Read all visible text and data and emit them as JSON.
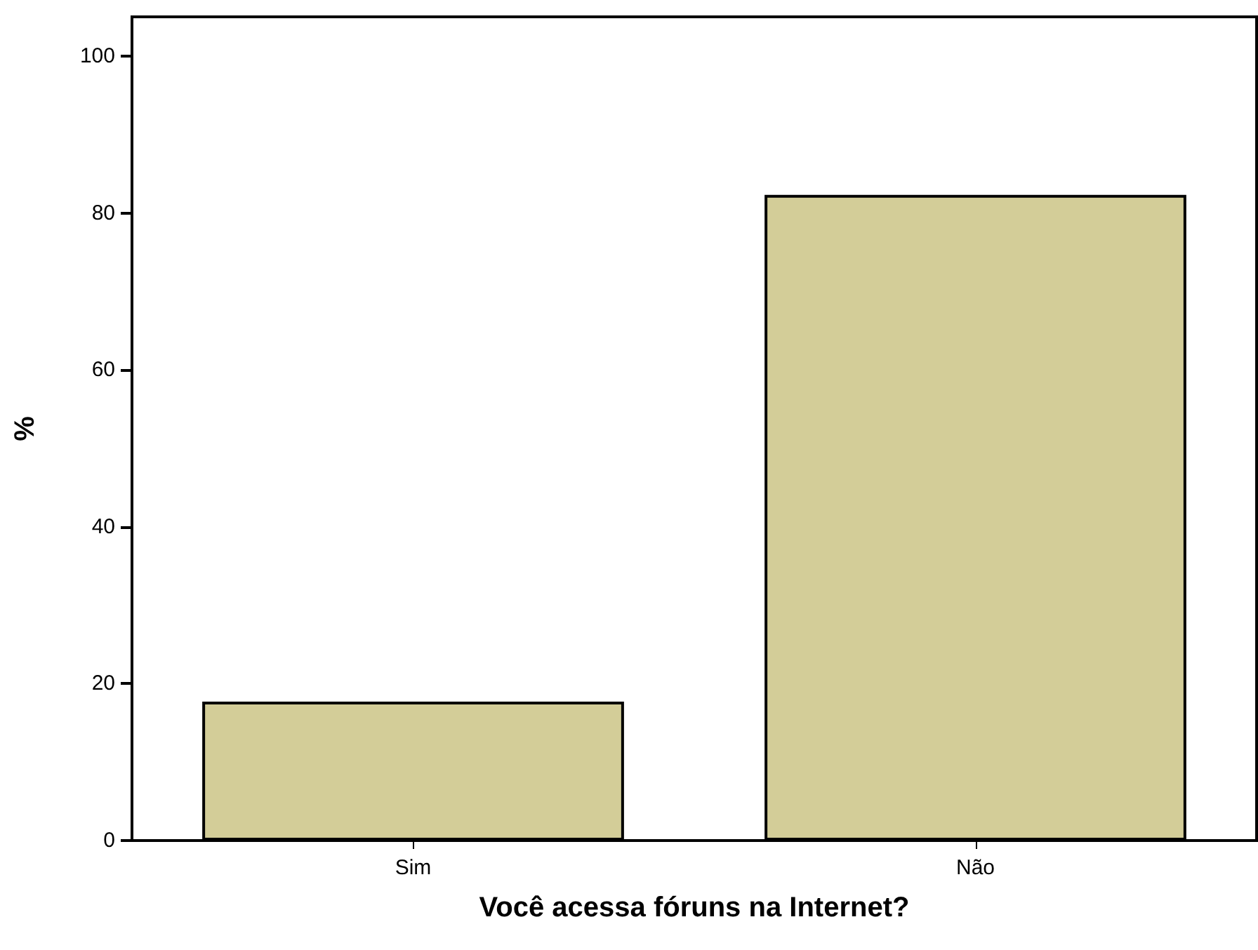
{
  "chart_data": {
    "type": "bar",
    "xlabel": "Você acessa fóruns na Internet?",
    "ylabel": "%",
    "categories": [
      "Sim",
      "Não"
    ],
    "values": [
      17.7,
      82.3
    ],
    "color": "#d3cd98",
    "ylim": [
      0,
      105
    ],
    "yticks": [
      0,
      20,
      40,
      60,
      80,
      100
    ],
    "grid": false
  }
}
